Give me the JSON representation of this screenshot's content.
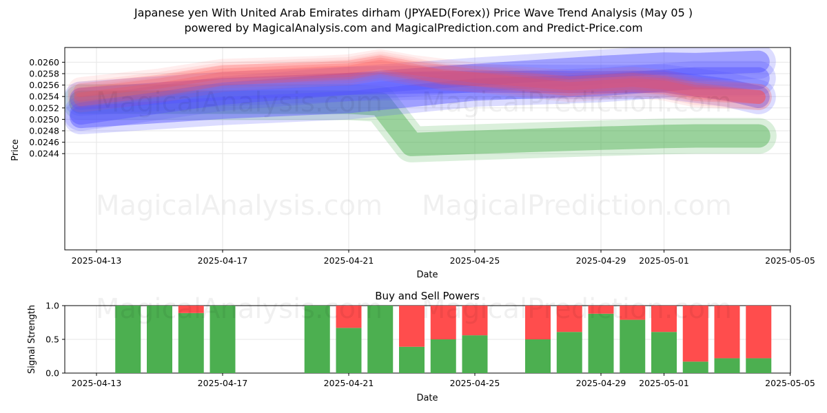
{
  "title_line1": "Japanese yen With United Arab Emirates dirham (JPYAED(Forex)) Price Wave Trend Analysis (May 05 )",
  "title_line2": "powered by MagicalAnalysis.com and MagicalPrediction.com and Predict-Price.com",
  "watermarks": [
    "MagicalAnalysis.com",
    "MagicalPrediction.com"
  ],
  "colors": {
    "green": "#4caf50",
    "red": "#ff4d4d",
    "blue": "#5555ff",
    "grid": "#e6e6e6"
  },
  "chart_data": [
    {
      "type": "line",
      "title": "",
      "xlabel": "Date",
      "ylabel": "Price",
      "x_ticks": [
        "2025-04-13",
        "2025-04-17",
        "2025-04-21",
        "2025-04-25",
        "2025-04-29",
        "2025-05-01",
        "2025-05-05"
      ],
      "y_ticks": [
        "0.0244",
        "0.0246",
        "0.0248",
        "0.0250",
        "0.0252",
        "0.0254",
        "0.0256",
        "0.0258",
        "0.0260"
      ],
      "xlim": [
        "2025-04-12",
        "2025-05-05"
      ],
      "ylim": [
        0.02436,
        0.02614
      ],
      "grid": true,
      "series": [
        {
          "color": "green",
          "points": [
            [
              "2025-04-12T12:00",
              0.0253
            ],
            [
              "2025-04-17",
              0.0253
            ],
            [
              "2025-04-21",
              0.0253
            ],
            [
              "2025-04-22",
              0.02527
            ],
            [
              "2025-04-23",
              0.02456
            ],
            [
              "2025-04-25",
              0.0246
            ],
            [
              "2025-04-29",
              0.02467
            ],
            [
              "2025-05-01",
              0.0247
            ],
            [
              "2025-05-02",
              0.02471
            ],
            [
              "2025-05-04",
              0.02471
            ]
          ]
        },
        {
          "color": "blue",
          "points": [
            [
              "2025-04-12T12:00",
              0.02504
            ],
            [
              "2025-04-17",
              0.0252
            ],
            [
              "2025-04-21",
              0.0253
            ],
            [
              "2025-04-25",
              0.02552
            ],
            [
              "2025-04-29",
              0.0256
            ],
            [
              "2025-05-01",
              0.02568
            ],
            [
              "2025-05-02",
              0.02572
            ],
            [
              "2025-05-04",
              0.02572
            ]
          ]
        },
        {
          "color": "blue",
          "points": [
            [
              "2025-04-12T12:00",
              0.0251
            ],
            [
              "2025-04-17",
              0.02545
            ],
            [
              "2025-04-21",
              0.02562
            ],
            [
              "2025-04-25",
              0.02578
            ],
            [
              "2025-04-29",
              0.02592
            ],
            [
              "2025-05-01",
              0.02598
            ],
            [
              "2025-05-02",
              0.02597
            ],
            [
              "2025-05-04",
              0.02601
            ]
          ]
        },
        {
          "color": "blue",
          "points": [
            [
              "2025-04-12T12:00",
              0.02536
            ],
            [
              "2025-04-17",
              0.02553
            ],
            [
              "2025-04-21",
              0.02562
            ],
            [
              "2025-04-25",
              0.02566
            ],
            [
              "2025-04-29",
              0.02565
            ],
            [
              "2025-05-01",
              0.02566
            ],
            [
              "2025-05-03",
              0.02552
            ],
            [
              "2025-05-04",
              0.02539
            ]
          ]
        },
        {
          "color": "red",
          "points": [
            [
              "2025-04-12T12:00",
              0.02543
            ],
            [
              "2025-04-15",
              0.0256
            ],
            [
              "2025-04-17",
              0.02577
            ],
            [
              "2025-04-20",
              0.02584
            ],
            [
              "2025-04-21",
              0.02586
            ],
            [
              "2025-04-22",
              0.02596
            ],
            [
              "2025-04-23",
              0.02586
            ],
            [
              "2025-04-24",
              0.02573
            ],
            [
              "2025-04-26",
              0.02568
            ],
            [
              "2025-04-28",
              0.02558
            ],
            [
              "2025-04-30",
              0.02564
            ],
            [
              "2025-05-01",
              0.0256
            ],
            [
              "2025-05-02",
              0.02548
            ],
            [
              "2025-05-04",
              0.02539
            ]
          ]
        },
        {
          "color": "red",
          "points": [
            [
              "2025-04-12T12:00",
              0.02551
            ],
            [
              "2025-04-15",
              0.02566
            ],
            [
              "2025-04-17",
              0.02583
            ],
            [
              "2025-04-20",
              0.02588
            ],
            [
              "2025-04-21",
              0.02591
            ],
            [
              "2025-04-22",
              0.026
            ],
            [
              "2025-04-23",
              0.0259
            ],
            [
              "2025-04-25",
              0.02576
            ],
            [
              "2025-04-28",
              0.02563
            ],
            [
              "2025-04-30",
              0.02569
            ],
            [
              "2025-05-01",
              0.02564
            ],
            [
              "2025-05-02",
              0.02552
            ],
            [
              "2025-05-04",
              0.02539
            ]
          ]
        },
        {
          "color": "red",
          "points": [
            [
              "2025-04-12T12:00",
              0.02535
            ],
            [
              "2025-04-15",
              0.02552
            ],
            [
              "2025-04-17",
              0.02571
            ],
            [
              "2025-04-20",
              0.0258
            ],
            [
              "2025-04-21",
              0.02582
            ],
            [
              "2025-04-22",
              0.02592
            ],
            [
              "2025-04-23",
              0.02582
            ],
            [
              "2025-04-25",
              0.0257
            ],
            [
              "2025-04-28",
              0.02553
            ],
            [
              "2025-04-30",
              0.0256
            ],
            [
              "2025-05-01",
              0.02556
            ],
            [
              "2025-05-02",
              0.02544
            ],
            [
              "2025-05-04",
              0.02539
            ]
          ]
        }
      ]
    },
    {
      "type": "bar",
      "title": "Buy and Sell Powers",
      "xlabel": "Date",
      "ylabel": "Signal Strength",
      "x_ticks": [
        "2025-04-13",
        "2025-04-17",
        "2025-04-21",
        "2025-04-25",
        "2025-04-29",
        "2025-05-01",
        "2025-05-05"
      ],
      "y_ticks": [
        "0.0",
        "0.5",
        "1.0"
      ],
      "ylim": [
        0,
        1
      ],
      "grid": true,
      "bars": [
        {
          "date": "2025-04-14",
          "buy": 1.0
        },
        {
          "date": "2025-04-15",
          "buy": 1.0
        },
        {
          "date": "2025-04-16",
          "buy": 0.89
        },
        {
          "date": "2025-04-17",
          "buy": 1.0
        },
        {
          "date": "2025-04-20",
          "buy": 1.0
        },
        {
          "date": "2025-04-21",
          "buy": 0.67
        },
        {
          "date": "2025-04-22",
          "buy": 1.0
        },
        {
          "date": "2025-04-23",
          "buy": 0.39
        },
        {
          "date": "2025-04-24",
          "buy": 0.5
        },
        {
          "date": "2025-04-25",
          "buy": 0.56
        },
        {
          "date": "2025-04-27",
          "buy": 0.5
        },
        {
          "date": "2025-04-28",
          "buy": 0.61
        },
        {
          "date": "2025-04-29",
          "buy": 0.88
        },
        {
          "date": "2025-04-30",
          "buy": 0.79
        },
        {
          "date": "2025-05-01",
          "buy": 0.61
        },
        {
          "date": "2025-05-02",
          "buy": 0.17
        },
        {
          "date": "2025-05-03",
          "buy": 0.22
        },
        {
          "date": "2025-05-04",
          "buy": 0.22
        }
      ]
    }
  ]
}
